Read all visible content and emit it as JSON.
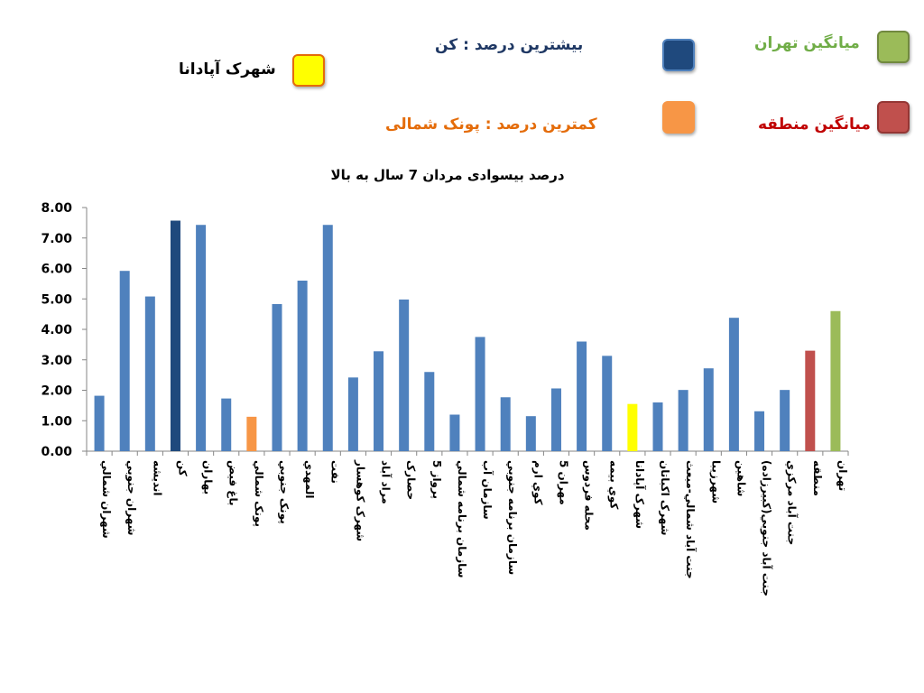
{
  "legend": {
    "max_label": "بیشترین درصد   :  کن",
    "min_label": "کمترین درصد  : پونک شمالی",
    "tehran_label": "میانگین  تهران",
    "region_label": "میانگین منطقه",
    "apadana_label": "شهرک آپادانا",
    "colors": {
      "max": "#1F497D",
      "min": "#F79646",
      "tehran": "#9BBB59",
      "region": "#C0504D",
      "apadana": "#FFFF00",
      "default_bar": "#4F81BD"
    }
  },
  "chart_data": {
    "type": "bar",
    "title": "درصد بیسوادی مردان 7 سال به بالا",
    "ylim": [
      0,
      8
    ],
    "yticks": [
      "0.00",
      "1.00",
      "2.00",
      "3.00",
      "4.00",
      "5.00",
      "6.00",
      "7.00",
      "8.00"
    ],
    "grid": false,
    "categories": [
      "شهران شمالي",
      "شهران جنوبي",
      "اندیشه",
      "کن",
      "بهاران",
      "باغ فیض",
      "پونک شمالي",
      "پونک جنوبي",
      "المهدي",
      "نفت",
      "شهرک کوهسار",
      "مراد آباد",
      "حصارک",
      "پرواز 5",
      "سازمان برنامه شمالي",
      "سازمان آب",
      "سازمان برنامه جنوبي",
      "کوي ارم",
      "مهران 5",
      "محله فردوس",
      "کوي بيمه",
      "شهرک آپادانا",
      "شهرک اکباتان",
      "جنت آباد شمالي-مبعث",
      "شهرزیبا",
      "شاهین",
      "جنت آباد جنوبي(کبیرزاده)",
      "جنت آباد مرکزي",
      "منطقه",
      "تهران"
    ],
    "values": [
      1.82,
      5.92,
      5.08,
      7.57,
      7.43,
      1.73,
      1.13,
      4.83,
      5.6,
      7.43,
      2.42,
      3.28,
      4.98,
      2.6,
      1.2,
      3.75,
      1.77,
      1.15,
      2.06,
      3.6,
      3.13,
      1.55,
      1.6,
      2.01,
      2.72,
      4.38,
      1.31,
      2.01,
      3.3,
      4.6
    ],
    "highlight": {
      "3": "max",
      "6": "min",
      "21": "apadana",
      "28": "region",
      "29": "tehran"
    }
  }
}
